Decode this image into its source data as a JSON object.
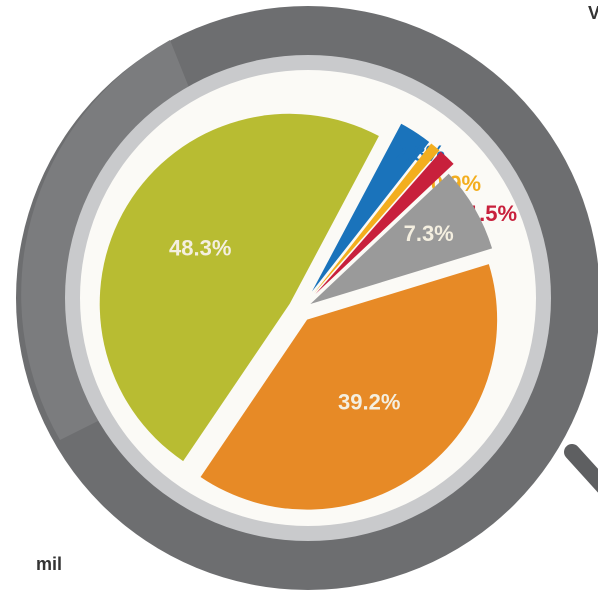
{
  "chart_data": {
    "type": "pie",
    "categories": [
      null,
      null,
      null,
      null,
      null,
      null
    ],
    "values": [
      2.8,
      0.9,
      1.5,
      7.3,
      39.2,
      48.3
    ],
    "value_labels": [
      "2.8%",
      "0.9%",
      "1.5%",
      "7.3%",
      "39.2%",
      "48.3%"
    ],
    "colors": [
      "#1a73bb",
      "#f3ae1e",
      "#c8203c",
      "#9a9a9a",
      "#e78a26",
      "#b8bc32"
    ],
    "annotations": [
      "V",
      "mil"
    ]
  }
}
